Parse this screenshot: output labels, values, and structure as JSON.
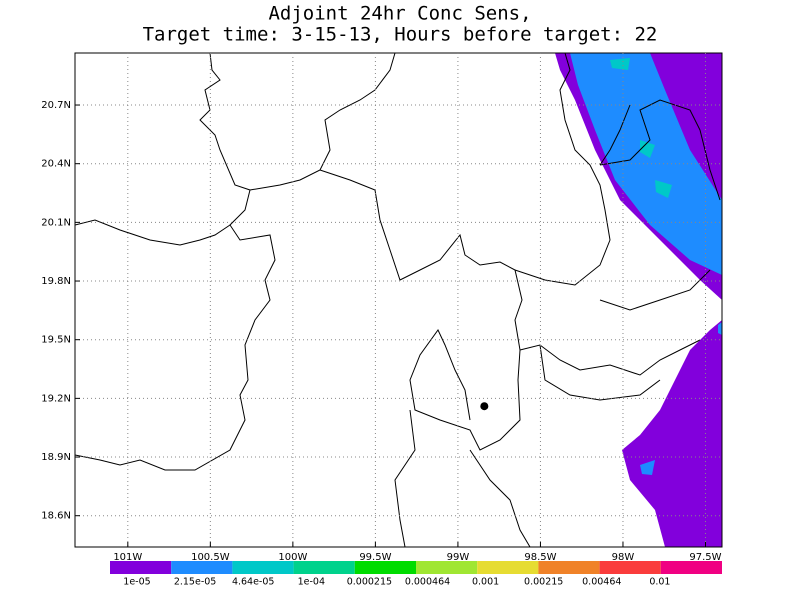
{
  "map": {
    "title": [
      "Adjoint 24hr Conc Sens,",
      "Target time: 3-15-13, Hours before target: 22"
    ],
    "xlim": [
      -101.32,
      -97.4
    ],
    "ylim": [
      18.44,
      20.966
    ],
    "xticks": [
      {
        "value": -101,
        "label": "101W"
      },
      {
        "value": -100.5,
        "label": "100.5W"
      },
      {
        "value": -100,
        "label": "100W"
      },
      {
        "value": -99.5,
        "label": "99.5W"
      },
      {
        "value": -99,
        "label": "99W"
      },
      {
        "value": -98.5,
        "label": "98.5W"
      },
      {
        "value": -98,
        "label": "98W"
      },
      {
        "value": -97.5,
        "label": "97.5W"
      }
    ],
    "yticks": [
      {
        "value": 18.6,
        "label": "18.6N"
      },
      {
        "value": 18.9,
        "label": "18.9N"
      },
      {
        "value": 19.2,
        "label": "19.2N"
      },
      {
        "value": 19.5,
        "label": "19.5N"
      },
      {
        "value": 19.8,
        "label": "19.8N"
      },
      {
        "value": 20.1,
        "label": "20.1N"
      },
      {
        "value": 20.4,
        "label": "20.4N"
      },
      {
        "value": 20.7,
        "label": "20.7N"
      }
    ],
    "grid": true,
    "marker": {
      "lon": -98.84,
      "lat": 19.16
    },
    "colorbar": {
      "levels": [
        {
          "value": 1e-05,
          "label": "1e-05"
        },
        {
          "value": 2.15e-05,
          "label": "2.15e-05"
        },
        {
          "value": 4.64e-05,
          "label": "4.64e-05"
        },
        {
          "value": 0.0001,
          "label": "1e-04"
        },
        {
          "value": 0.000215,
          "label": "0.000215"
        },
        {
          "value": 0.000464,
          "label": "0.000464"
        },
        {
          "value": 0.001,
          "label": "0.001"
        },
        {
          "value": 0.00215,
          "label": "0.00215"
        },
        {
          "value": 0.00464,
          "label": "0.00464"
        },
        {
          "value": 0.01,
          "label": "0.01"
        }
      ],
      "colors": [
        "#8200dc",
        "#1e8cff",
        "#00c8c8",
        "#00d28c",
        "#00dc00",
        "#a0e632",
        "#e6dc32",
        "#f08228",
        "#fa3c3c",
        "#f00082"
      ]
    }
  }
}
